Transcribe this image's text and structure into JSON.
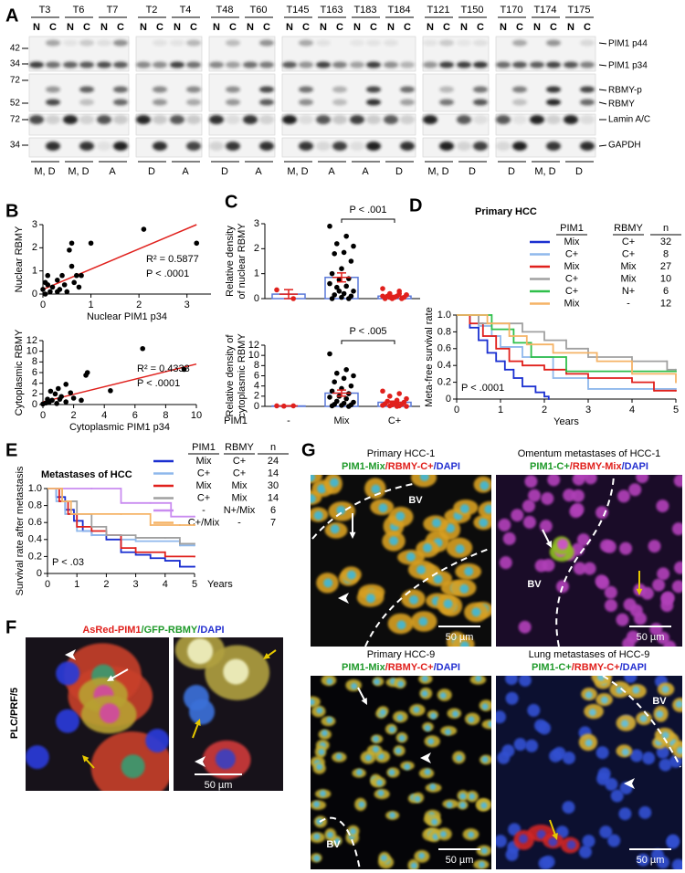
{
  "figure": {
    "panel_letters": [
      "A",
      "B",
      "C",
      "D",
      "E",
      "F",
      "G"
    ],
    "blot": {
      "groups": [
        {
          "samples": [
            {
              "id": "T3",
              "lanes": [
                "N",
                "C"
              ],
              "diagnosis": "M, D"
            },
            {
              "id": "T6",
              "lanes": [
                "N",
                "C"
              ],
              "diagnosis": "M, D"
            },
            {
              "id": "T7",
              "lanes": [
                "N",
                "C"
              ],
              "diagnosis": "A"
            }
          ]
        },
        {
          "samples": [
            {
              "id": "T2",
              "lanes": [
                "N",
                "C"
              ],
              "diagnosis": "D"
            },
            {
              "id": "T4",
              "lanes": [
                "N",
                "C"
              ],
              "diagnosis": "A"
            }
          ]
        },
        {
          "samples": [
            {
              "id": "T48",
              "lanes": [
                "N",
                "C"
              ],
              "diagnosis": "D"
            },
            {
              "id": "T60",
              "lanes": [
                "N",
                "C"
              ],
              "diagnosis": "A"
            }
          ]
        },
        {
          "samples": [
            {
              "id": "T145",
              "lanes": [
                "N",
                "C"
              ],
              "diagnosis": "M, D"
            },
            {
              "id": "T163",
              "lanes": [
                "N",
                "C"
              ],
              "diagnosis": "A"
            },
            {
              "id": "T183",
              "lanes": [
                "N",
                "C"
              ],
              "diagnosis": "A"
            },
            {
              "id": "T184",
              "lanes": [
                "N",
                "C"
              ],
              "diagnosis": "D"
            }
          ]
        },
        {
          "samples": [
            {
              "id": "T121",
              "lanes": [
                "N",
                "C"
              ],
              "diagnosis": "M, D"
            },
            {
              "id": "T150",
              "lanes": [
                "N",
                "C"
              ],
              "diagnosis": "D"
            }
          ]
        },
        {
          "samples": [
            {
              "id": "T170",
              "lanes": [
                "N",
                "C"
              ],
              "diagnosis": "D"
            },
            {
              "id": "T174",
              "lanes": [
                "N",
                "C"
              ],
              "diagnosis": "M, D"
            },
            {
              "id": "T175",
              "lanes": [
                "N",
                "C"
              ],
              "diagnosis": "D"
            }
          ]
        }
      ],
      "markers": [
        42,
        34,
        72,
        52,
        72,
        34
      ],
      "bands": [
        "PIM1 p44",
        "PIM1 p34",
        "RBMY-p",
        "RBMY",
        "Lamin A/C",
        "GAPDH"
      ]
    },
    "F": {
      "stain": [
        {
          "text": "AsRed-PIM1",
          "color": "#e0201c"
        },
        {
          "text": "/GFP-RBMY",
          "color": "#1f9a2a"
        },
        {
          "text": "/DAPI",
          "color": "#2430d0"
        }
      ],
      "side_label": "PLC/PRF/5",
      "scale": "50 µm"
    },
    "G": {
      "images": [
        {
          "title": "Primary HCC-1",
          "stain": [
            {
              "text": "PIM1-Mix",
              "color": "#1f9a2a"
            },
            {
              "text": "/RBMY-C+",
              "color": "#e0201c"
            },
            {
              "text": "/DAPI",
              "color": "#2430d0"
            }
          ],
          "label": "BV",
          "scale": "50 µm"
        },
        {
          "title": "Omentum metastases of HCC-1",
          "stain": [
            {
              "text": "PIM1-C+",
              "color": "#1f9a2a"
            },
            {
              "text": "/RBMY-Mix",
              "color": "#e0201c"
            },
            {
              "text": "/DAPI",
              "color": "#2430d0"
            }
          ],
          "label": "BV",
          "scale": "50 µm"
        },
        {
          "title": "Primary HCC-9",
          "stain": [
            {
              "text": "PIM1-Mix",
              "color": "#1f9a2a"
            },
            {
              "text": "/RBMY-C+",
              "color": "#e0201c"
            },
            {
              "text": "/DAPI",
              "color": "#2430d0"
            }
          ],
          "label": "BV",
          "scale": "50 µm"
        },
        {
          "title": "Lung metastases of HCC-9",
          "stain": [
            {
              "text": "PIM1-C+",
              "color": "#1f9a2a"
            },
            {
              "text": "/RBMY-C+",
              "color": "#e0201c"
            },
            {
              "text": "/DAPI",
              "color": "#2430d0"
            }
          ],
          "label": "BV",
          "scale": "50 µm"
        }
      ]
    }
  },
  "chart_data": [
    {
      "type": "scatter",
      "x_label": "Nuclear PIM1 p34",
      "y_label": "Nuclear RBMY",
      "x": [
        0,
        0.05,
        0.1,
        0.15,
        0.2,
        0.3,
        0.35,
        0.4,
        0.5,
        0.55,
        0.6,
        0.65,
        0.7,
        0.75,
        0.8,
        0.3,
        0.45,
        1.0,
        0.6,
        2.1,
        3.2,
        0.1,
        0.05
      ],
      "y": [
        0.2,
        0.5,
        0.8,
        0.1,
        0.3,
        0.6,
        0.2,
        0.8,
        0.1,
        1.9,
        2.2,
        0.5,
        0.8,
        0.3,
        0.8,
        0.1,
        0.4,
        2.2,
        1.2,
        2.8,
        2.2,
        0.4,
        0
      ],
      "color": "#000000",
      "xlim": [
        0,
        3.5
      ],
      "xticks": [
        0,
        1,
        2,
        3
      ],
      "ylim": [
        0,
        3
      ],
      "yticks": [
        0,
        1,
        2,
        3
      ],
      "fit": {
        "x": [
          0,
          3.2
        ],
        "y": [
          0.2,
          3.0
        ],
        "color": "#e0201c"
      },
      "annotations": [
        "R² = 0.5877",
        "P < .0001"
      ]
    },
    {
      "type": "scatter",
      "x_label": "Cytoplasmic PIM1 p34",
      "y_label": "Cytoplasmic RBMY",
      "x": [
        6.5,
        9.2,
        2.9,
        2.8,
        1.5,
        1,
        4.4,
        0.5,
        0.8,
        1.2,
        0.3,
        0.6,
        1.5,
        2,
        0.2,
        0.9,
        1.8,
        0.4,
        1.1,
        0,
        2.5
      ],
      "y": [
        10.5,
        6.6,
        6,
        5.5,
        3.8,
        3,
        2.6,
        2.5,
        2,
        1.5,
        1,
        0.8,
        0.5,
        1.2,
        0.3,
        0.2,
        2.2,
        0.4,
        1.0,
        0.1,
        0.8
      ],
      "color": "#000000",
      "xlim": [
        0,
        10
      ],
      "xticks": [
        0,
        2,
        4,
        6,
        8,
        10
      ],
      "ylim": [
        0,
        12
      ],
      "yticks": [
        0,
        2,
        4,
        6,
        8,
        10,
        12
      ],
      "fit": {
        "x": [
          0,
          10
        ],
        "y": [
          0.5,
          7.6
        ],
        "color": "#e0201c"
      },
      "annotations": [
        "R² = 0.4333",
        "P < .0001"
      ]
    },
    {
      "type": "dot_bar",
      "y_label": [
        "Relative density",
        "of nuclear RBMY"
      ],
      "ylim": [
        0,
        3
      ],
      "yticks": [
        0,
        1,
        2,
        3
      ],
      "values": [
        0.18,
        0.85,
        0.1
      ],
      "errors": [
        0.18,
        0.18,
        0.03
      ],
      "points": [
        [
          0.35,
          0
        ],
        [
          2.9,
          2.5,
          2.2,
          2.1,
          1.85,
          1.8,
          1.5,
          1.2,
          1.0,
          0.8,
          0.75,
          0.6,
          0.5,
          0.45,
          0.3,
          0.2,
          0.15,
          0.1,
          0.05,
          0,
          0,
          0.3
        ],
        [
          0.4,
          0.3,
          0.2,
          0.15,
          0.1,
          0.1,
          0.05,
          0.05,
          0,
          0,
          0,
          0.1,
          0.2,
          0.05,
          0.15
        ]
      ],
      "bar_color": "#5a78d8",
      "error_color": "#e0201c",
      "point_colors": [
        "#e0201c",
        "#000000",
        "#e0201c"
      ],
      "significance": "P < .001"
    },
    {
      "type": "dot_bar",
      "y_label": [
        "Relative density of",
        "cytoplasmic RBMY"
      ],
      "x_label": "PIM1",
      "categories": [
        "-",
        "Mix",
        "C+"
      ],
      "ylim": [
        0,
        12
      ],
      "yticks": [
        0,
        2,
        4,
        6,
        8,
        10,
        12
      ],
      "values": [
        0.08,
        2.6,
        0.8
      ],
      "errors": [
        0.03,
        0.6,
        0.22
      ],
      "points": [
        [
          0.1,
          0.1,
          0.05
        ],
        [
          10.3,
          7.2,
          6.5,
          6,
          5.5,
          4.8,
          4,
          3.5,
          3,
          2.5,
          2,
          1.8,
          1.5,
          1,
          0.8,
          0.6,
          0.4,
          0.3,
          0.2,
          0.1,
          0
        ],
        [
          3,
          2.5,
          2,
          1.5,
          1.2,
          1,
          0.8,
          0.6,
          0.5,
          0.4,
          0.3,
          0.2,
          0.1,
          0.1,
          0,
          0
        ]
      ],
      "bar_color": "#5a78d8",
      "error_color": "#e0201c",
      "point_colors": [
        "#e0201c",
        "#000000",
        "#e0201c"
      ],
      "significance": "P < .005"
    },
    {
      "type": "survival",
      "title": "Primary HCC",
      "legend_header": [
        "PIM1",
        "RBMY",
        "n"
      ],
      "x_label": "Years",
      "y_label": "Meta-free survival rate",
      "xlim": [
        0,
        5
      ],
      "xticks": [
        0,
        1,
        2,
        3,
        4,
        5
      ],
      "ylim": [
        0,
        1
      ],
      "yticks": [
        0,
        0.2,
        0.4,
        0.6,
        0.8,
        {
          "value": 1,
          "label": "1.0"
        }
      ],
      "annotation": "P < .0001",
      "series": [
        {
          "pim1": "Mix",
          "rbmy": "C+",
          "n": 32,
          "color": "#1a2fd0",
          "x": [
            0,
            0.3,
            0.5,
            0.7,
            0.9,
            1.1,
            1.3,
            1.5,
            1.8,
            2.0,
            2.1
          ],
          "y": [
            1,
            0.85,
            0.7,
            0.55,
            0.45,
            0.35,
            0.25,
            0.15,
            0.08,
            0.03,
            0
          ]
        },
        {
          "pim1": "C+",
          "rbmy": "C+",
          "n": 8,
          "color": "#8fb8ec",
          "x": [
            0,
            0.5,
            0.8,
            1,
            1.5,
            2.2,
            3,
            5
          ],
          "y": [
            1,
            0.87,
            0.75,
            0.62,
            0.5,
            0.25,
            0.12,
            0.12
          ]
        },
        {
          "pim1": "Mix",
          "rbmy": "Mix",
          "n": 27,
          "color": "#e0201c",
          "x": [
            0,
            0.3,
            0.6,
            0.9,
            1.2,
            1.5,
            2,
            2.5,
            3,
            4,
            4.5,
            5
          ],
          "y": [
            1,
            0.9,
            0.75,
            0.6,
            0.45,
            0.4,
            0.35,
            0.3,
            0.25,
            0.2,
            0.1,
            0.1
          ]
        },
        {
          "pim1": "C+",
          "rbmy": "Mix",
          "n": 10,
          "color": "#a0a0a0",
          "x": [
            0,
            0.5,
            1.5,
            2,
            2.5,
            3,
            4,
            4.8,
            5
          ],
          "y": [
            1,
            0.9,
            0.8,
            0.7,
            0.6,
            0.5,
            0.45,
            0.35,
            0.35
          ]
        },
        {
          "pim1": "C+",
          "rbmy": "N+",
          "n": 6,
          "color": "#2fbf4a",
          "x": [
            0,
            0.8,
            1.3,
            1.7,
            2.5,
            5
          ],
          "y": [
            1,
            0.83,
            0.67,
            0.5,
            0.33,
            0.33
          ]
        },
        {
          "pim1": "Mix",
          "rbmy": "-",
          "n": 12,
          "color": "#f5b366",
          "x": [
            0,
            0.7,
            1.2,
            1.6,
            2.2,
            3.2,
            4,
            5
          ],
          "y": [
            1,
            0.9,
            0.75,
            0.65,
            0.55,
            0.45,
            0.3,
            0.2
          ]
        }
      ]
    },
    {
      "type": "survival",
      "title": "Metastases of HCC",
      "legend_header": [
        "PIM1",
        "RBMY",
        "n"
      ],
      "x_label": "Years",
      "y_label": "Survival rate after metastasis",
      "xlim": [
        0,
        5
      ],
      "xticks": [
        0,
        1,
        2,
        3,
        4,
        5
      ],
      "ylim": [
        0,
        1
      ],
      "yticks": [
        0,
        0.2,
        0.4,
        0.6,
        0.8,
        {
          "value": 1,
          "label": "1.0"
        }
      ],
      "annotation": "P < .03",
      "series": [
        {
          "pim1": "Mix",
          "rbmy": "C+",
          "n": 24,
          "color": "#1a2fd0",
          "x": [
            0,
            0.3,
            0.6,
            0.9,
            1.2,
            1.5,
            2,
            2.5,
            3,
            3.5,
            4,
            4.5,
            5
          ],
          "y": [
            1,
            0.9,
            0.75,
            0.62,
            0.5,
            0.45,
            0.4,
            0.25,
            0.22,
            0.18,
            0.15,
            0.08,
            0.08
          ]
        },
        {
          "pim1": "C+",
          "rbmy": "C+",
          "n": 14,
          "color": "#8fb8ec",
          "x": [
            0,
            0.3,
            0.6,
            1,
            1.5,
            2.5,
            3,
            4.5,
            5
          ],
          "y": [
            1,
            0.85,
            0.7,
            0.5,
            0.45,
            0.4,
            0.38,
            0.33,
            0.33
          ]
        },
        {
          "pim1": "Mix",
          "rbmy": "Mix",
          "n": 30,
          "color": "#e0201c",
          "x": [
            0,
            0.4,
            0.7,
            1,
            1.5,
            2,
            2.5,
            3,
            4,
            5
          ],
          "y": [
            1,
            0.85,
            0.7,
            0.55,
            0.5,
            0.45,
            0.3,
            0.25,
            0.2,
            0.2
          ]
        },
        {
          "pim1": "C+",
          "rbmy": "Mix",
          "n": 14,
          "color": "#a0a0a0",
          "x": [
            0,
            0.5,
            1,
            1.5,
            2,
            3,
            4,
            4.5,
            5
          ],
          "y": [
            1,
            0.85,
            0.7,
            0.55,
            0.45,
            0.42,
            0.42,
            0.35,
            0.35
          ]
        },
        {
          "pim1": "-",
          "rbmy": "N+/Mix",
          "n": 6,
          "color": "#c98cf0",
          "x": [
            0,
            1.5,
            2.5,
            3.5,
            4.2,
            5
          ],
          "y": [
            1,
            1,
            0.83,
            0.83,
            0.67,
            0.67
          ]
        },
        {
          "pim1": "C+/Mix",
          "rbmy": "-",
          "n": 7,
          "color": "#f5b366",
          "x": [
            0,
            0.5,
            0.8,
            2.5,
            3.5,
            4.5,
            5
          ],
          "y": [
            1,
            0.85,
            0.7,
            0.7,
            0.57,
            0.57,
            0.57
          ]
        }
      ]
    }
  ]
}
